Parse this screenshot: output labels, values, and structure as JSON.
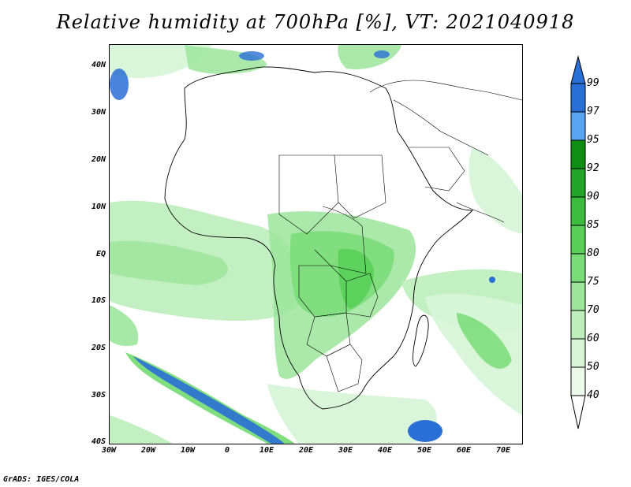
{
  "title": "Relative humidity at 700hPa [%], VT: 2021040918",
  "footer": "GrADS: IGES/COLA",
  "map": {
    "y_labels": [
      "40N",
      "30N",
      "20N",
      "10N",
      "EQ",
      "10S",
      "20S",
      "30S",
      "40S"
    ],
    "x_labels": [
      "30W",
      "20W",
      "10W",
      "0",
      "10E",
      "20E",
      "30E",
      "40E",
      "50E",
      "60E",
      "70E"
    ],
    "lat_range": [
      -40,
      44
    ],
    "lon_range": [
      -30,
      75
    ]
  },
  "colorbar": {
    "levels": [
      "99",
      "97",
      "95",
      "92",
      "90",
      "85",
      "80",
      "75",
      "70",
      "60",
      "50",
      "40"
    ],
    "colors": [
      "#2a6fd6",
      "#3f8ae8",
      "#5aa3f2",
      "#0e8f14",
      "#23a42a",
      "#3cbc3f",
      "#58cf58",
      "#79dc78",
      "#9ce59b",
      "#bdeebc",
      "#d8f5d8",
      "#ecfaec"
    ]
  }
}
